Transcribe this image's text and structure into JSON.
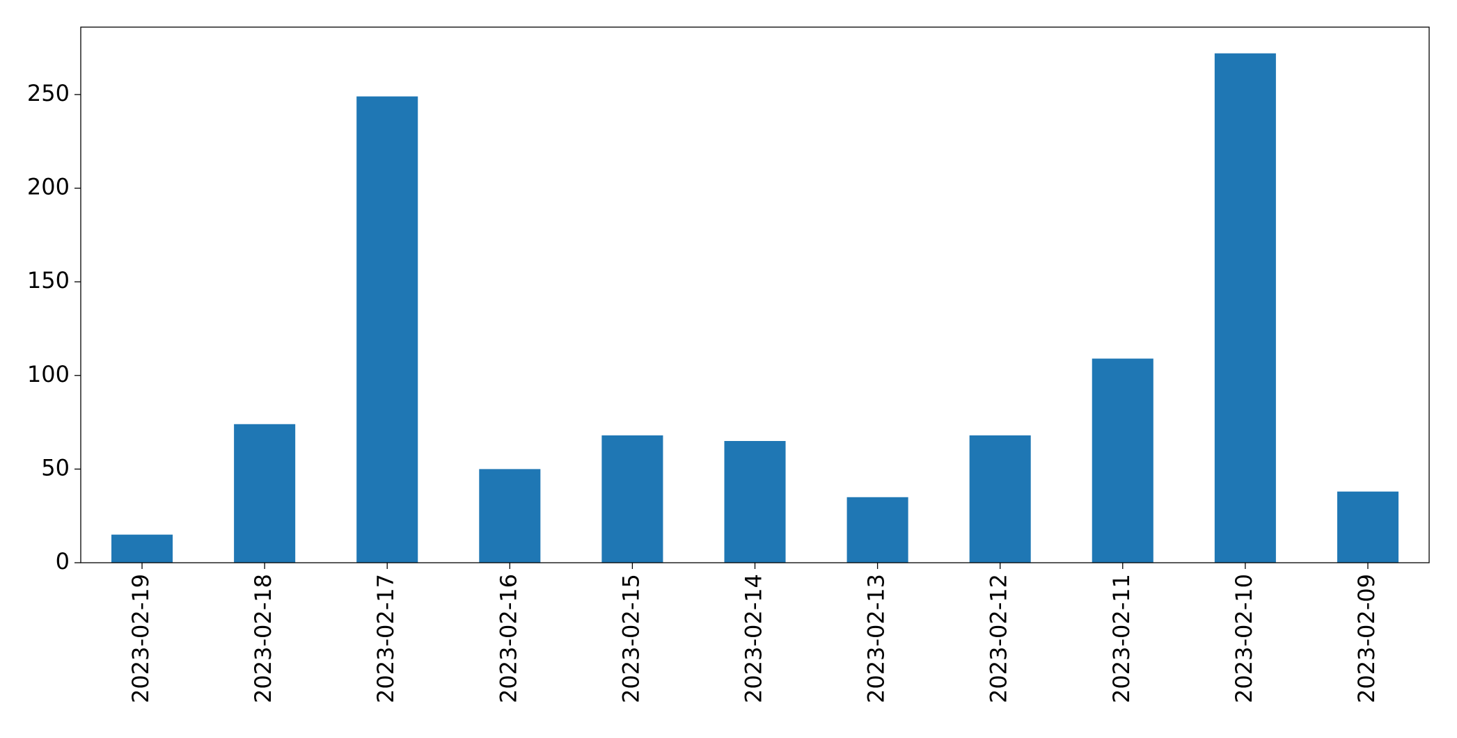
{
  "chart_data": {
    "type": "bar",
    "categories": [
      "2023-02-19",
      "2023-02-18",
      "2023-02-17",
      "2023-02-16",
      "2023-02-15",
      "2023-02-14",
      "2023-02-13",
      "2023-02-12",
      "2023-02-11",
      "2023-02-10",
      "2023-02-09"
    ],
    "values": [
      15,
      74,
      249,
      50,
      68,
      65,
      35,
      68,
      109,
      272,
      38
    ],
    "color": "#1f77b4",
    "ylim": [
      0,
      286
    ],
    "yticks": [
      0,
      50,
      100,
      150,
      200,
      250
    ],
    "grid": false
  }
}
